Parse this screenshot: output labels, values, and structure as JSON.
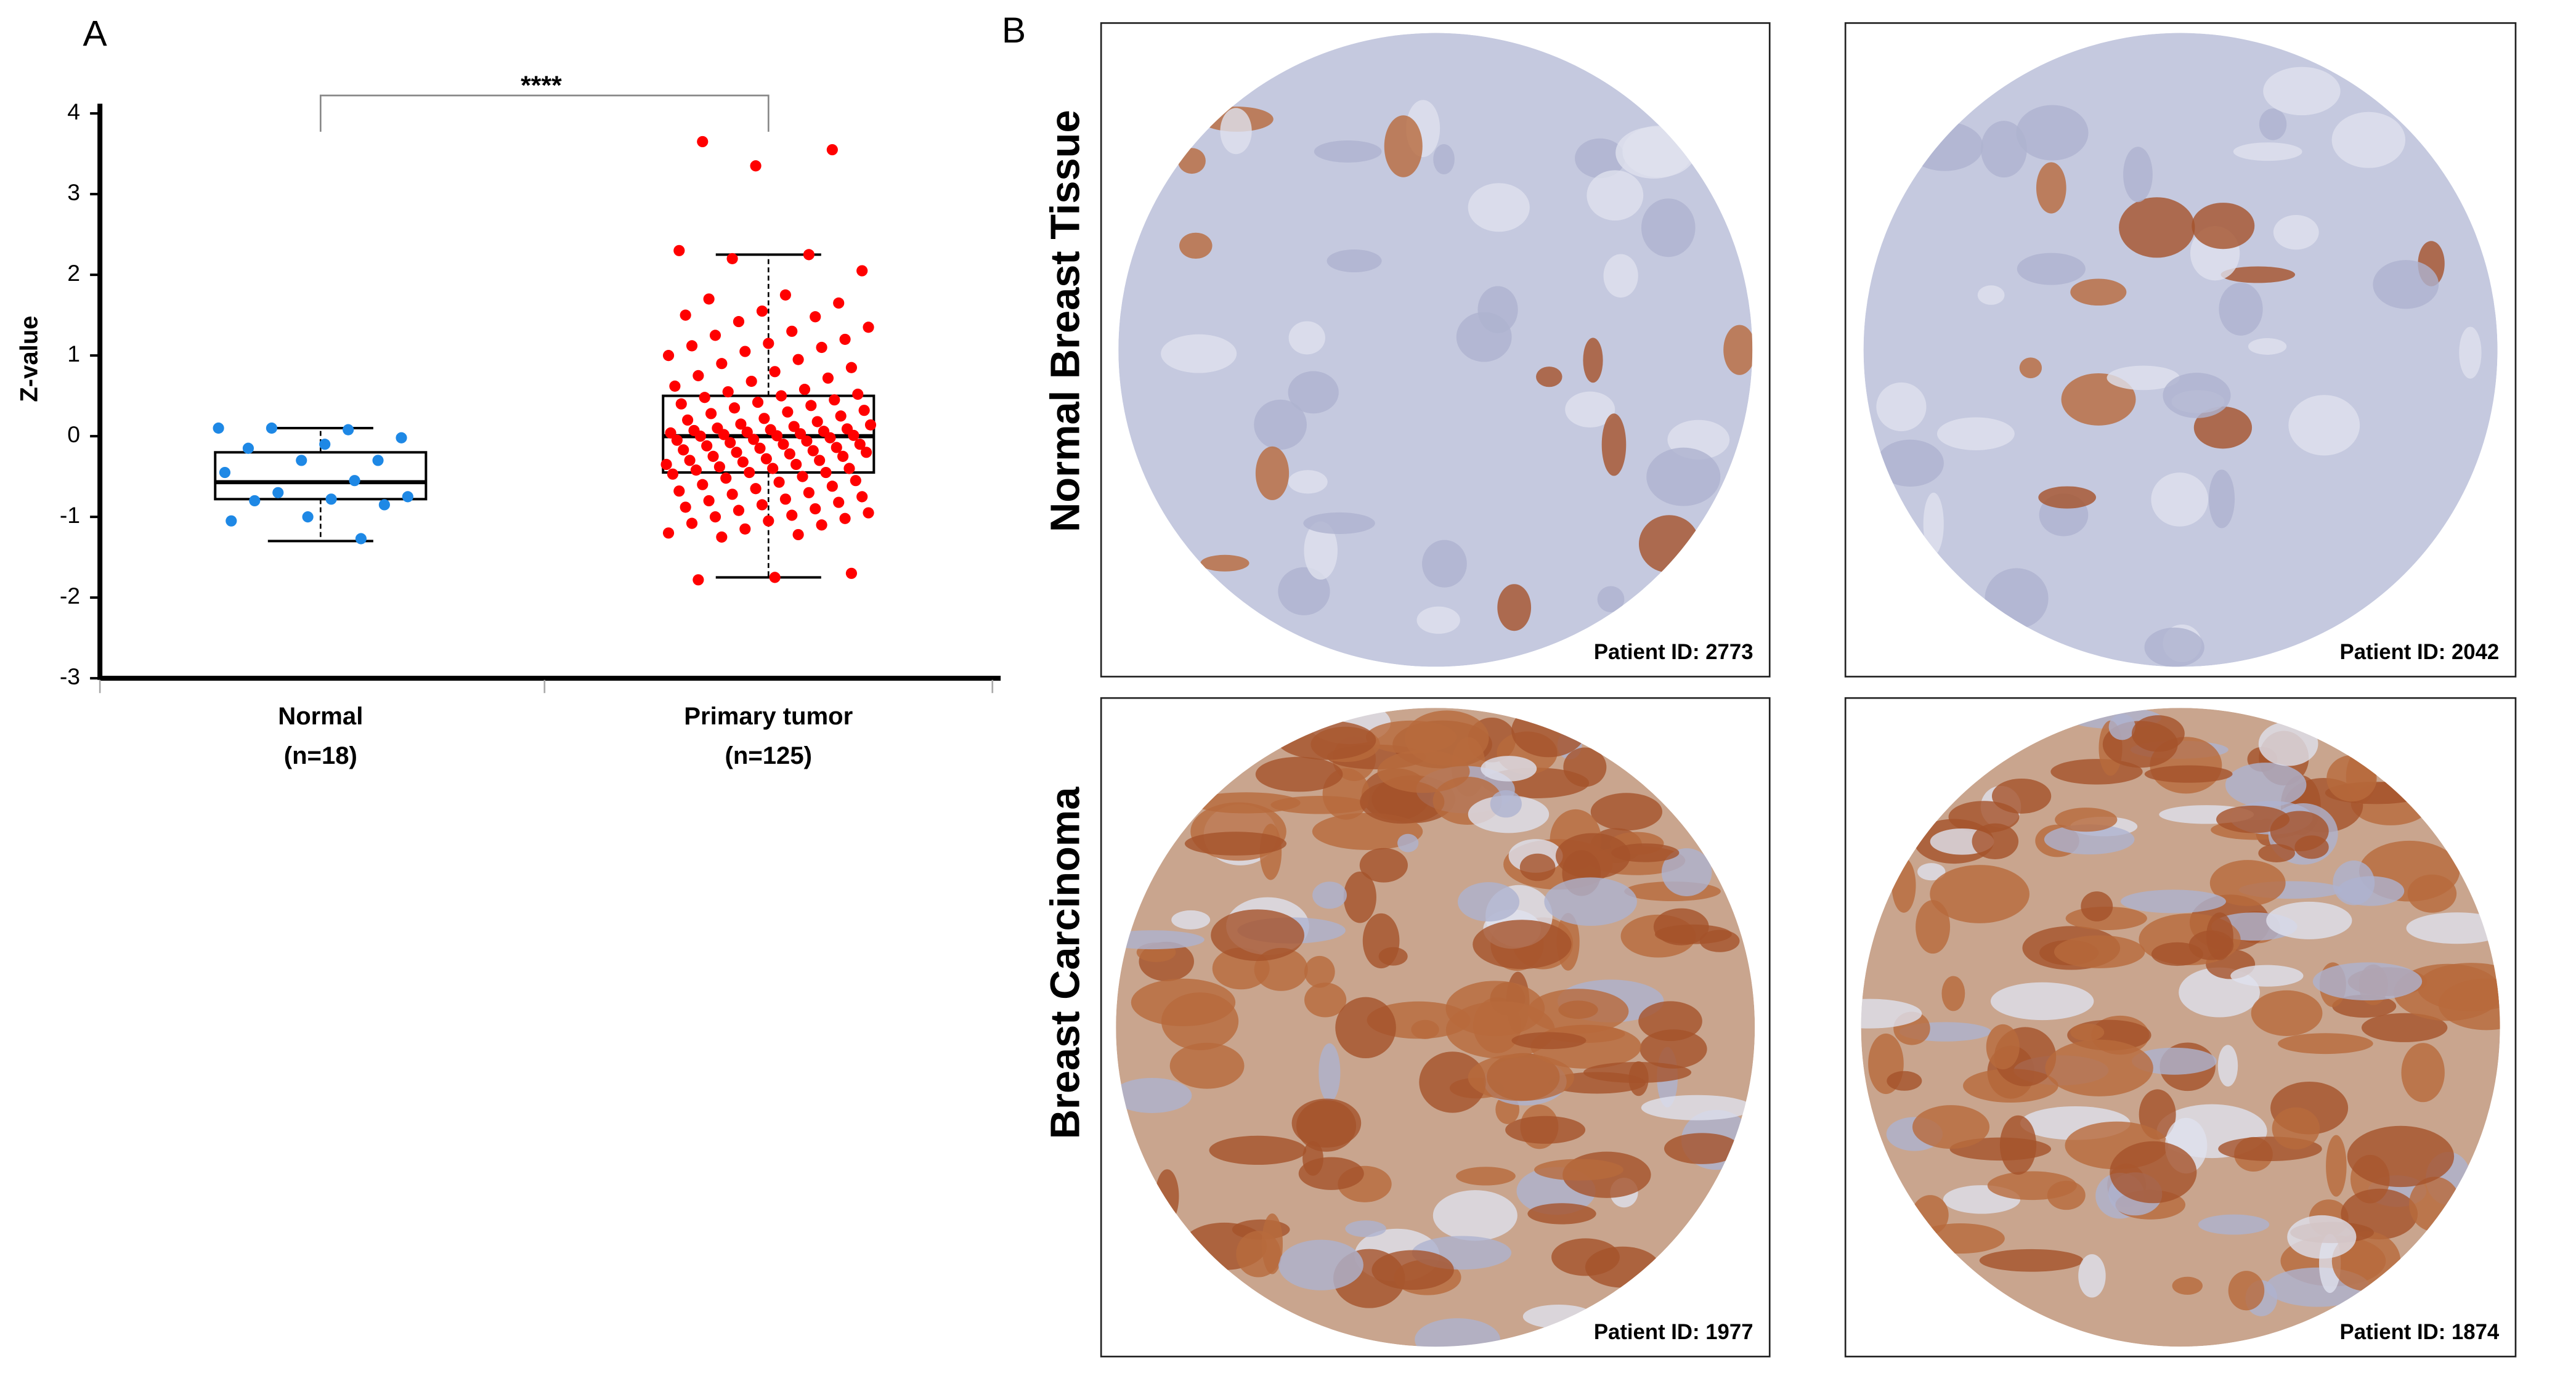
{
  "panel_a": {
    "label": "A",
    "chart_data": {
      "type": "box",
      "y_label": "Z-value",
      "ylim": [
        -3,
        4.12
      ],
      "yticks": [
        -3,
        -2,
        -1,
        0,
        1,
        2,
        3,
        4
      ],
      "categories": [
        "Normal",
        "Primary tumor"
      ],
      "category_notes": [
        "(n=18)",
        "(n=125)"
      ],
      "significance": "****",
      "groups": [
        {
          "color": "#1e88e5",
          "box": {
            "whisker_low": -1.3,
            "q1": -0.78,
            "median": -0.57,
            "q3": -0.2,
            "whisker_high": 0.1
          },
          "values": [
            0.1,
            0.08,
            0.1,
            -0.02,
            -0.1,
            -0.15,
            -0.3,
            -0.3,
            -0.45,
            -0.55,
            -0.7,
            -0.75,
            -0.78,
            -0.8,
            -0.85,
            -1.0,
            -1.05,
            -1.27
          ]
        },
        {
          "color": "#ff0000",
          "box": {
            "whisker_low": -1.75,
            "q1": -0.45,
            "median": 0,
            "q3": 0.5,
            "whisker_high": 2.25
          },
          "values": [
            3.65,
            3.55,
            3.35,
            2.3,
            2.25,
            2.2,
            2.05,
            1.75,
            1.7,
            1.65,
            1.55,
            1.5,
            1.48,
            1.42,
            1.35,
            1.3,
            1.25,
            1.2,
            1.15,
            1.12,
            1.1,
            1.05,
            1.0,
            0.95,
            0.9,
            0.85,
            0.8,
            0.75,
            0.72,
            0.68,
            0.62,
            0.58,
            0.55,
            0.52,
            0.5,
            0.48,
            0.45,
            0.42,
            0.4,
            0.38,
            0.35,
            0.32,
            0.3,
            0.28,
            0.25,
            0.22,
            0.2,
            0.18,
            0.15,
            0.14,
            0.12,
            0.1,
            0.09,
            0.08,
            0.07,
            0.06,
            0.05,
            0.04,
            0.03,
            0.02,
            0.01,
            0.005,
            0,
            -0.02,
            -0.04,
            -0.05,
            -0.06,
            -0.08,
            -0.1,
            -0.1,
            -0.12,
            -0.14,
            -0.15,
            -0.17,
            -0.18,
            -0.2,
            -0.2,
            -0.22,
            -0.25,
            -0.25,
            -0.28,
            -0.3,
            -0.3,
            -0.32,
            -0.35,
            -0.35,
            -0.38,
            -0.4,
            -0.4,
            -0.42,
            -0.45,
            -0.45,
            -0.47,
            -0.5,
            -0.52,
            -0.55,
            -0.57,
            -0.6,
            -0.62,
            -0.65,
            -0.68,
            -0.7,
            -0.72,
            -0.75,
            -0.78,
            -0.8,
            -0.82,
            -0.85,
            -0.88,
            -0.9,
            -0.92,
            -0.95,
            -0.98,
            -1.0,
            -1.02,
            -1.05,
            -1.08,
            -1.1,
            -1.15,
            -1.2,
            -1.22,
            -1.25,
            -1.7,
            -1.75,
            -1.78
          ]
        }
      ]
    }
  },
  "panel_b": {
    "label": "B",
    "rows": [
      {
        "label": "Normal Breast Tissue",
        "images": [
          {
            "caption": "Patient ID: 2773"
          },
          {
            "caption": "Patient ID: 2042"
          }
        ]
      },
      {
        "label": "Breast Carcinoma",
        "images": [
          {
            "caption": "Patient ID: 1977"
          },
          {
            "caption": "Patient ID: 1874"
          }
        ]
      }
    ]
  }
}
